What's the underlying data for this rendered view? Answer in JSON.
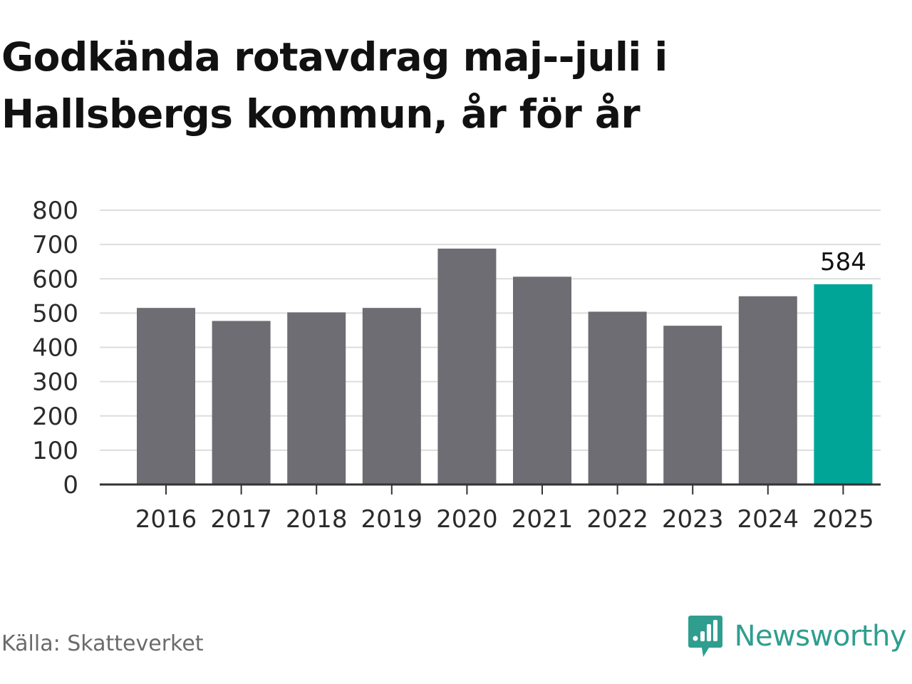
{
  "title": "Godkända rotavdrag maj--juli i Hallsbergs kommun, år för år",
  "source": "Källa: Skatteverket",
  "brand": {
    "name": "Newsworthy",
    "logo_icon": "newsworthy-logo-icon",
    "color": "#2f9e8f"
  },
  "colors": {
    "bar_default": "#6e6d73",
    "bar_highlight": "#00a598",
    "grid": "#dddddd",
    "axis": "#333333"
  },
  "chart_data": {
    "type": "bar",
    "categories": [
      "2016",
      "2017",
      "2018",
      "2019",
      "2020",
      "2021",
      "2022",
      "2023",
      "2024",
      "2025"
    ],
    "values": [
      515,
      477,
      502,
      515,
      688,
      606,
      504,
      463,
      549,
      584
    ],
    "highlight_index": 9,
    "data_labels": [
      {
        "index": 9,
        "text": "584"
      }
    ],
    "yticks": [
      "0",
      "100",
      "200",
      "300",
      "400",
      "500",
      "600",
      "700",
      "800"
    ],
    "ylim": [
      0,
      800
    ],
    "grid": true,
    "title": "Godkända rotavdrag maj--juli i Hallsbergs kommun, år för år",
    "xlabel": "",
    "ylabel": ""
  }
}
